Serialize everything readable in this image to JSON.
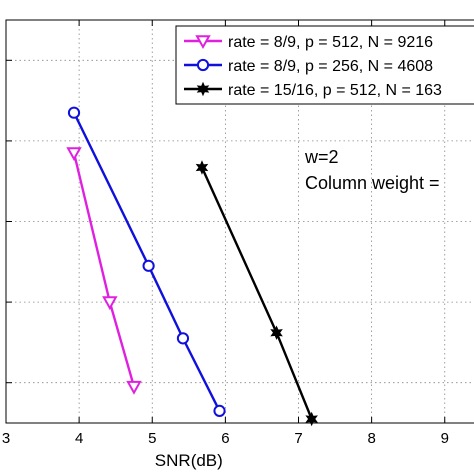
{
  "chart_data": {
    "type": "line",
    "xlabel": "SNR(dB)",
    "xlim": [
      3,
      9.4
    ],
    "ylim": [
      0,
      5
    ],
    "x_ticks": [
      3,
      4,
      5,
      6,
      7,
      8,
      9
    ],
    "y_gridlines": [
      0.5,
      1.5,
      2.5,
      3.5,
      4.5
    ],
    "grid": true,
    "legend_position": "top-right",
    "series": [
      {
        "name": "rate = 8/9, p = 512, N = 9216",
        "color": "#e020e0",
        "marker": "triangle-down",
        "x": [
          3.93,
          4.42,
          4.75
        ],
        "y": [
          3.35,
          1.5,
          0.45
        ]
      },
      {
        "name": "rate = 8/9, p = 256, N = 4608",
        "color": "#1010dd",
        "marker": "circle",
        "x": [
          3.93,
          4.95,
          5.42,
          5.92
        ],
        "y": [
          3.85,
          1.95,
          1.05,
          0.15
        ]
      },
      {
        "name": "rate = 15/16, p = 512, N = 163",
        "color": "#000000",
        "marker": "hexagram",
        "x": [
          5.68,
          6.7,
          7.18
        ],
        "y": [
          3.17,
          1.12,
          0.05
        ]
      }
    ],
    "annotations": [
      "w=2",
      "Column weight ="
    ]
  }
}
